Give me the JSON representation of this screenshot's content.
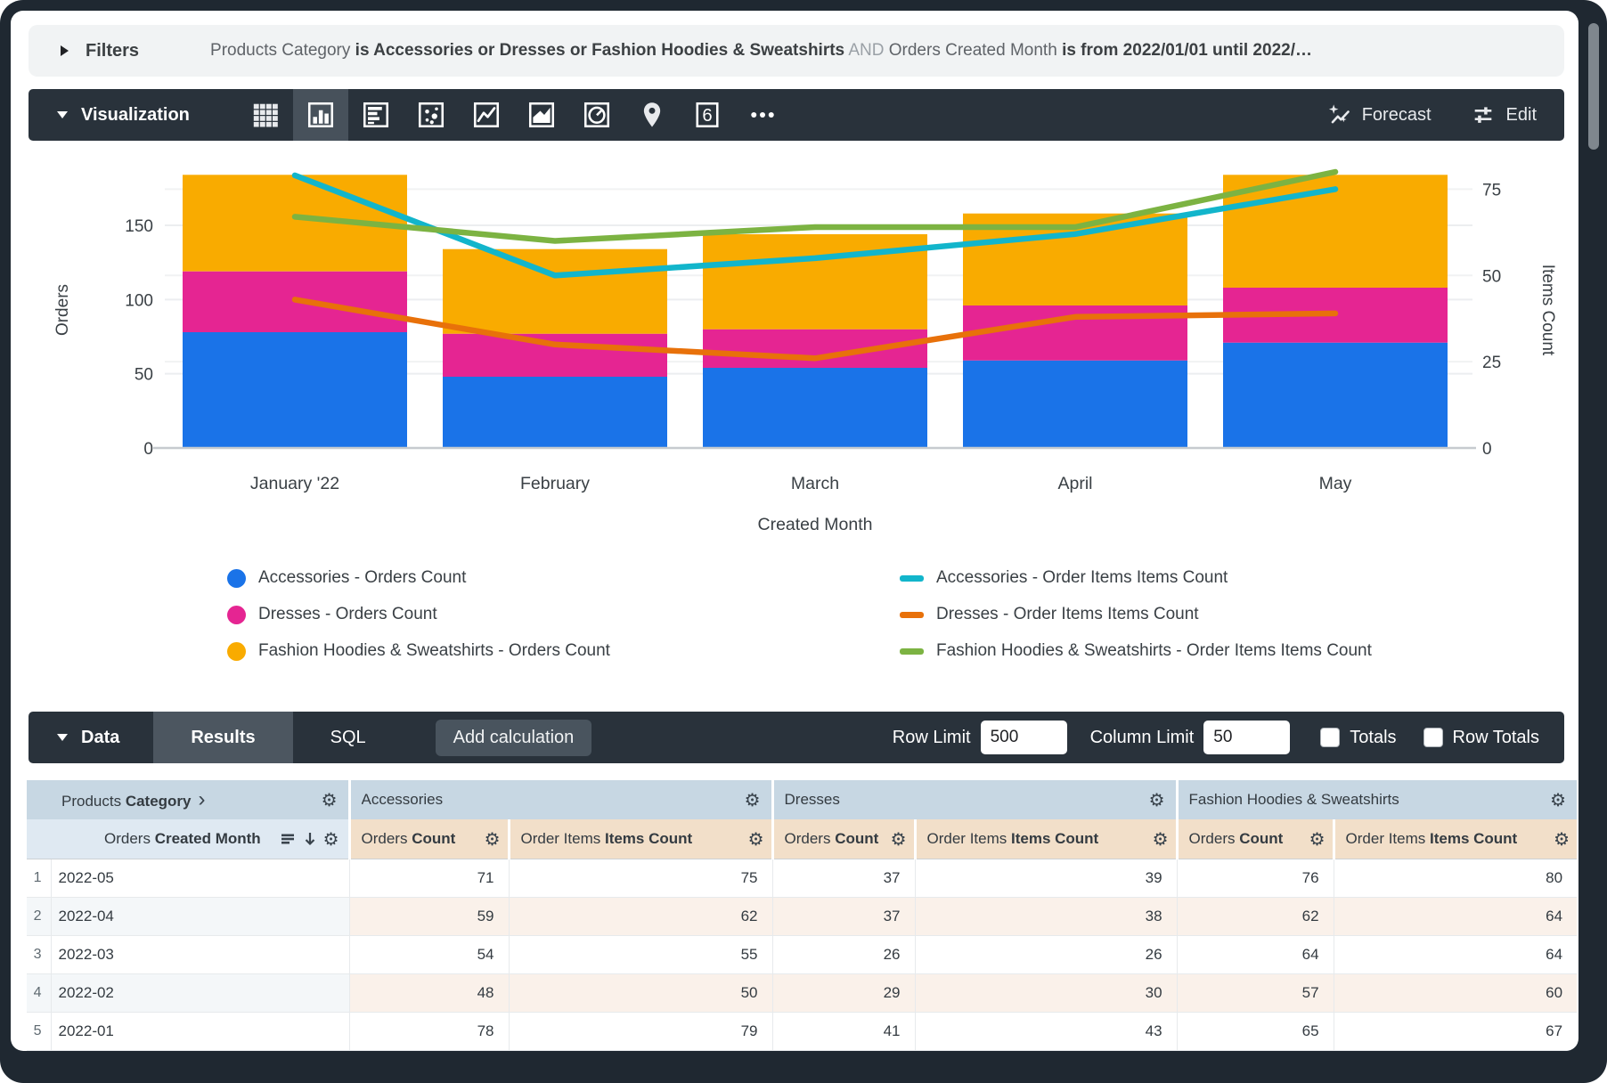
{
  "filters": {
    "label": "Filters",
    "segments": [
      {
        "style": "normal",
        "text": "Products Category "
      },
      {
        "style": "bold",
        "text": "is Accessories or Dresses or Fashion Hoodies & Sweatshirts"
      },
      {
        "style": "dim",
        "text": " AND "
      },
      {
        "style": "normal",
        "text": "Orders Created Month "
      },
      {
        "style": "bold",
        "text": "is from 2022/01/01 until 2022/…"
      }
    ]
  },
  "visualization": {
    "label": "Visualization",
    "icons": [
      "table",
      "column-chart",
      "bar-chart",
      "scatter-plot",
      "line-chart",
      "area-chart",
      "pie-chart",
      "map-pin",
      "single-value",
      "more-options"
    ],
    "selected_icon": "column-chart",
    "single_value_glyph": "6",
    "forecast_label": "Forecast",
    "edit_label": "Edit"
  },
  "chart_data": {
    "type": "combo-stacked-bar-and-line",
    "categories": [
      "January '22",
      "February",
      "March",
      "April",
      "May"
    ],
    "xlabel": "Created Month",
    "left_axis": {
      "label": "Orders",
      "ticks": [
        0,
        50,
        100,
        150
      ],
      "max": 186
    },
    "right_axis": {
      "label": "Items Count",
      "ticks": [
        0,
        25,
        50,
        75
      ],
      "max": 80
    },
    "bar_series": [
      {
        "name": "Accessories - Orders Count",
        "color": "#1A73E8",
        "values": [
          78,
          48,
          54,
          59,
          71
        ]
      },
      {
        "name": "Dresses - Orders Count",
        "color": "#E52592",
        "values": [
          41,
          29,
          26,
          37,
          37
        ]
      },
      {
        "name": "Fashion Hoodies & Sweatshirts - Orders Count",
        "color": "#F9AB00",
        "values": [
          65,
          57,
          64,
          62,
          76
        ]
      }
    ],
    "line_series": [
      {
        "name": "Accessories - Order Items Items Count",
        "color": "#12B5CB",
        "values": [
          79,
          50,
          55,
          62,
          75
        ]
      },
      {
        "name": "Dresses - Order Items Items Count",
        "color": "#E8710A",
        "values": [
          43,
          30,
          26,
          38,
          39
        ]
      },
      {
        "name": "Fashion Hoodies & Sweatshirts - Order Items Items Count",
        "color": "#7CB342",
        "values": [
          67,
          60,
          64,
          64,
          80
        ]
      }
    ],
    "grid": true,
    "legend_position": "bottom"
  },
  "data_panel": {
    "label": "Data",
    "tabs": [
      {
        "label": "Results",
        "selected": true
      },
      {
        "label": "SQL",
        "selected": false
      }
    ],
    "add_calculation_label": "Add calculation",
    "row_limit_label": "Row Limit",
    "row_limit_value": "500",
    "column_limit_label": "Column Limit",
    "column_limit_value": "50",
    "totals_label": "Totals",
    "totals_checked": false,
    "row_totals_label": "Row Totals",
    "row_totals_checked": false
  },
  "table": {
    "dimension_group": {
      "normal": "Products ",
      "bold": "Category"
    },
    "dimension_subheader": {
      "normal": "Orders ",
      "bold": "Created Month"
    },
    "groups": [
      "Accessories",
      "Dresses",
      "Fashion Hoodies & Sweatshirts"
    ],
    "measure_columns": [
      {
        "normal": "Orders ",
        "bold": "Count"
      },
      {
        "normal": "Order Items ",
        "bold": "Items Count"
      }
    ],
    "rows": [
      {
        "num": "1",
        "month": "2022-05",
        "values": [
          71,
          75,
          37,
          39,
          76,
          80
        ]
      },
      {
        "num": "2",
        "month": "2022-04",
        "values": [
          59,
          62,
          37,
          38,
          62,
          64
        ]
      },
      {
        "num": "3",
        "month": "2022-03",
        "values": [
          54,
          55,
          26,
          26,
          64,
          64
        ]
      },
      {
        "num": "4",
        "month": "2022-02",
        "values": [
          48,
          50,
          29,
          30,
          57,
          60
        ]
      },
      {
        "num": "5",
        "month": "2022-01",
        "values": [
          78,
          79,
          41,
          43,
          65,
          67
        ]
      }
    ]
  }
}
